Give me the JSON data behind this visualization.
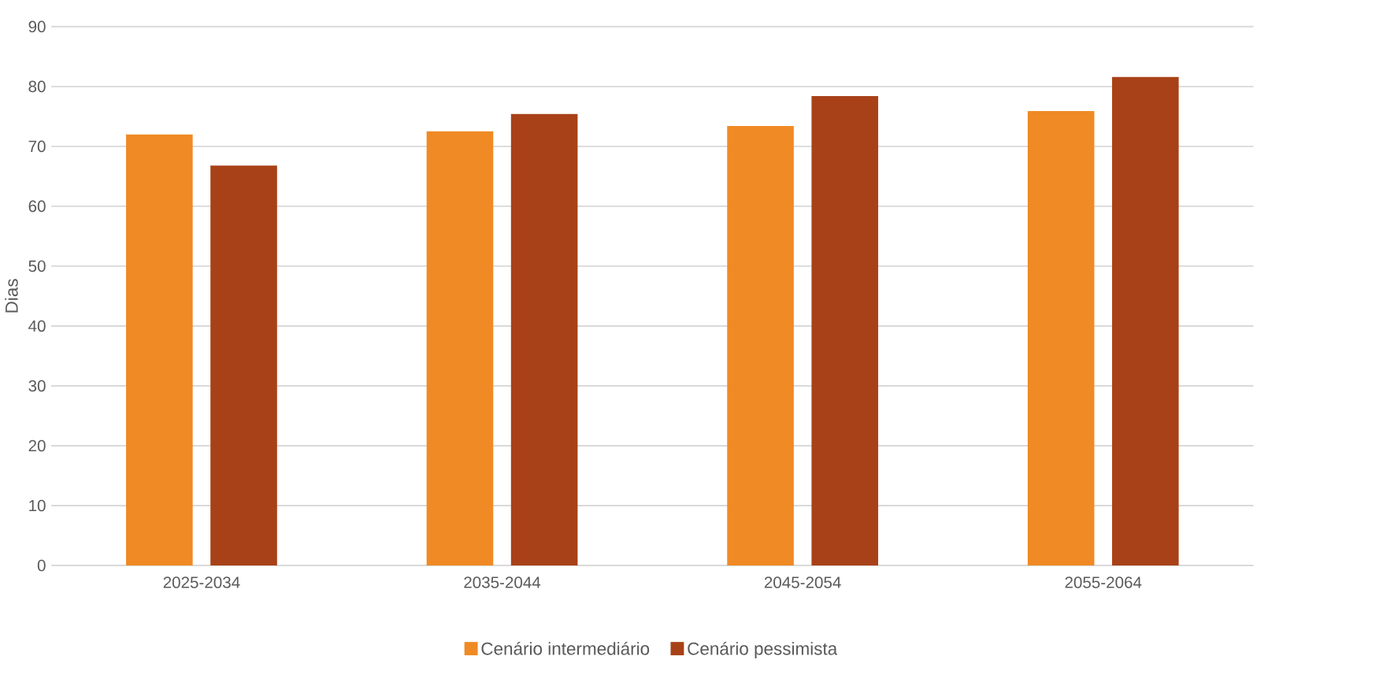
{
  "chart_data": {
    "type": "bar",
    "ylabel": "Dias",
    "categories": [
      "2025-2034",
      "2035-2044",
      "2045-2054",
      "2055-2064"
    ],
    "series": [
      {
        "name": "Cenário intermediário",
        "color": "#f08a24",
        "values": [
          72,
          72.5,
          73.4,
          75.9
        ]
      },
      {
        "name": "Cenário pessimista",
        "color": "#a84118",
        "values": [
          66.8,
          75.4,
          78.4,
          81.6
        ]
      }
    ],
    "ylim": [
      0,
      90
    ],
    "yticks": [
      0,
      10,
      20,
      30,
      40,
      50,
      60,
      70,
      80,
      90
    ],
    "grid": "y",
    "legend": "bottom"
  }
}
